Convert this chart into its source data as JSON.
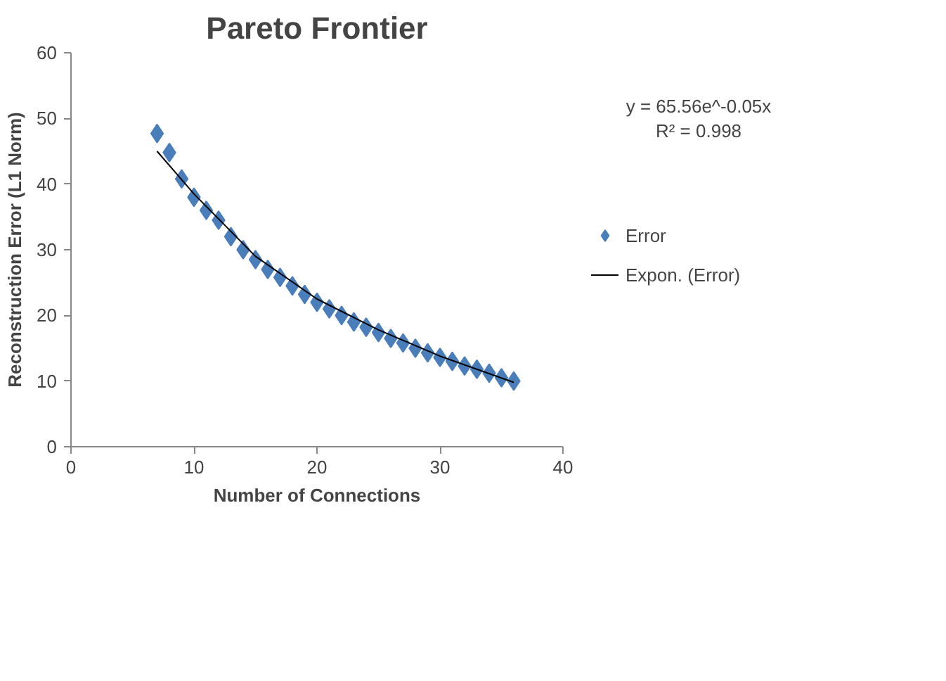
{
  "chart_data": {
    "type": "scatter",
    "title": "Pareto Frontier",
    "xlabel": "Number of Connections",
    "ylabel": "Reconstruction Error (L1 Norm)",
    "x": [
      7,
      8,
      9,
      10,
      11,
      12,
      13,
      14,
      15,
      16,
      17,
      18,
      19,
      20,
      21,
      22,
      23,
      24,
      25,
      26,
      27,
      28,
      29,
      30,
      31,
      32,
      33,
      34,
      35,
      36
    ],
    "series": [
      {
        "name": "Error",
        "color": "#4a7ebb",
        "values": [
          47.7,
          44.8,
          40.8,
          38,
          36,
          34.5,
          32,
          30,
          28.5,
          27,
          25.8,
          24.5,
          23.2,
          22,
          21,
          20,
          19,
          18.2,
          17.4,
          16.5,
          15.8,
          15,
          14.3,
          13.6,
          13,
          12.3,
          11.8,
          11.2,
          10.5,
          10
        ]
      },
      {
        "name": "Expon. (Error)",
        "type": "line",
        "marker": "none",
        "color": "#000000",
        "x": [
          7,
          10,
          15,
          20,
          25,
          30,
          36
        ],
        "values": [
          45,
          38.5,
          29,
          22.5,
          17.8,
          13.8,
          9.8
        ]
      }
    ],
    "annotations": [
      "y = 65.56e^-0.05x",
      "R² = 0.998"
    ],
    "xlim": [
      0,
      40
    ],
    "ylim": [
      0,
      60
    ],
    "xticks": [
      0,
      10,
      20,
      30,
      40
    ],
    "yticks": [
      0,
      10,
      20,
      30,
      40,
      50,
      60
    ],
    "grid": false,
    "legend": "right",
    "marker": "diamond"
  }
}
